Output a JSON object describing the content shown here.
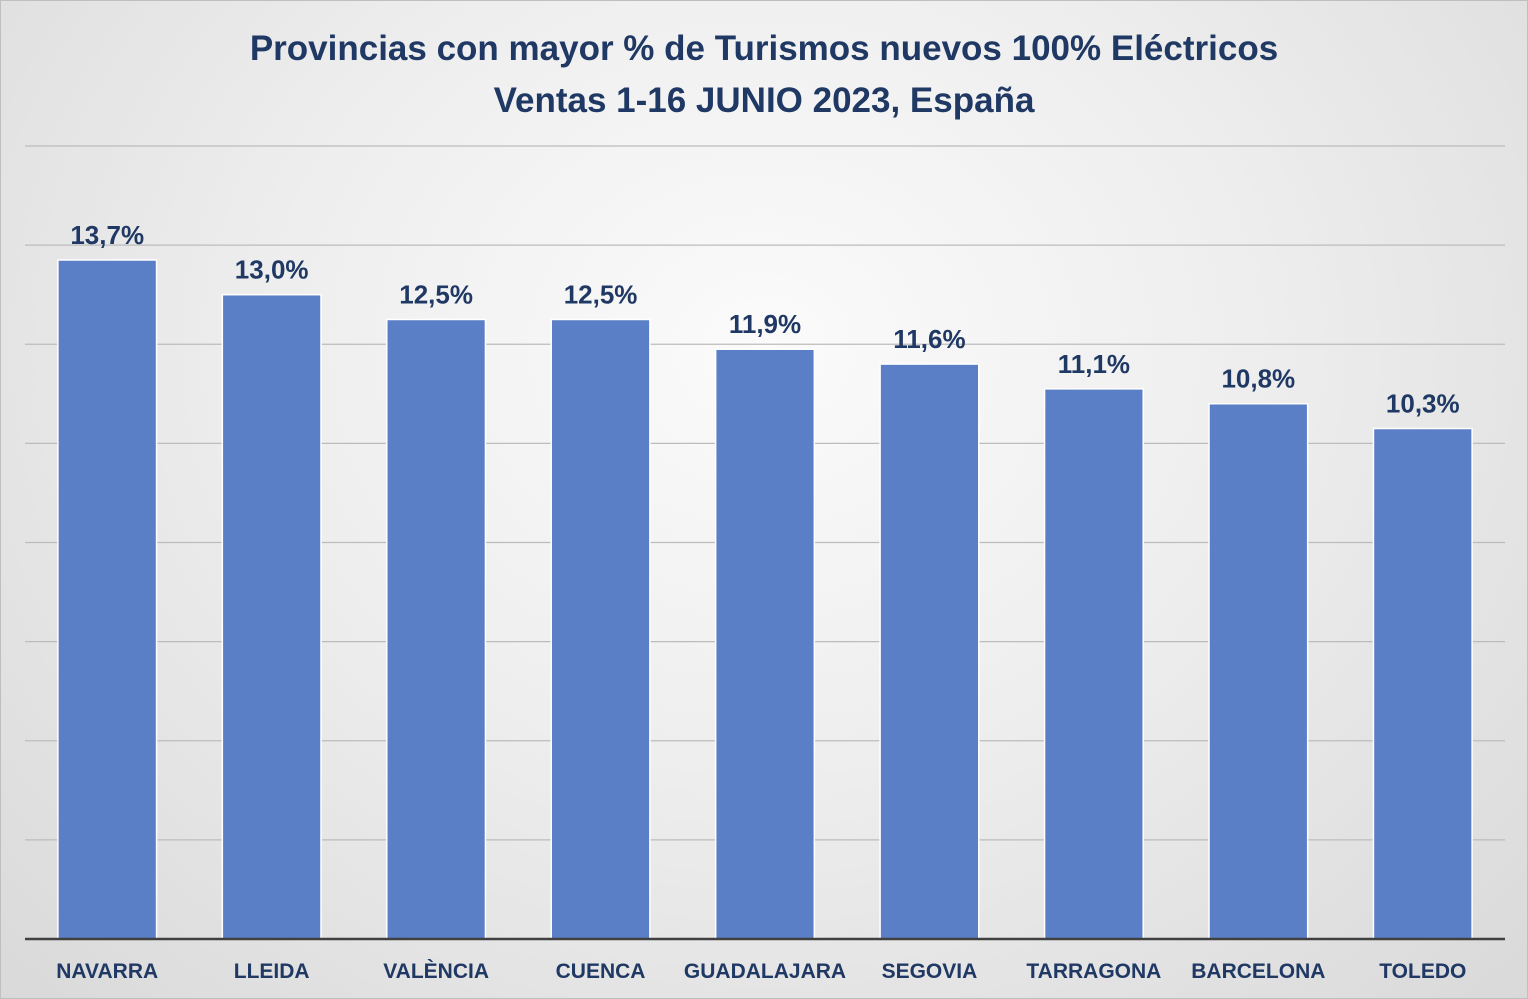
{
  "chart_data": {
    "type": "bar",
    "title": "Provincias con mayor % de Turismos nuevos 100% Eléctricos",
    "subtitle": "Ventas  1-16 JUNIO 2023, España",
    "categories": [
      "NAVARRA",
      "LLEIDA",
      "VALÈNCIA",
      "CUENCA",
      "GUADALAJARA",
      "SEGOVIA",
      "TARRAGONA",
      "BARCELONA",
      "TOLEDO"
    ],
    "values": [
      13.7,
      13.0,
      12.5,
      12.5,
      11.9,
      11.6,
      11.1,
      10.8,
      10.3
    ],
    "data_labels": [
      "13,7%",
      "13,0%",
      "12,5%",
      "12,5%",
      "11,9%",
      "11,6%",
      "11,1%",
      "10,8%",
      "10,3%"
    ],
    "xlabel": "",
    "ylabel": "",
    "ylim": [
      0,
      16
    ],
    "y_axis_labels_visible": false,
    "grid": true,
    "legend": "none",
    "colors": {
      "bar": "#5b7fc6",
      "text": "#1f3864",
      "gridline": "#bcbcbc",
      "axis": "#404040"
    }
  }
}
